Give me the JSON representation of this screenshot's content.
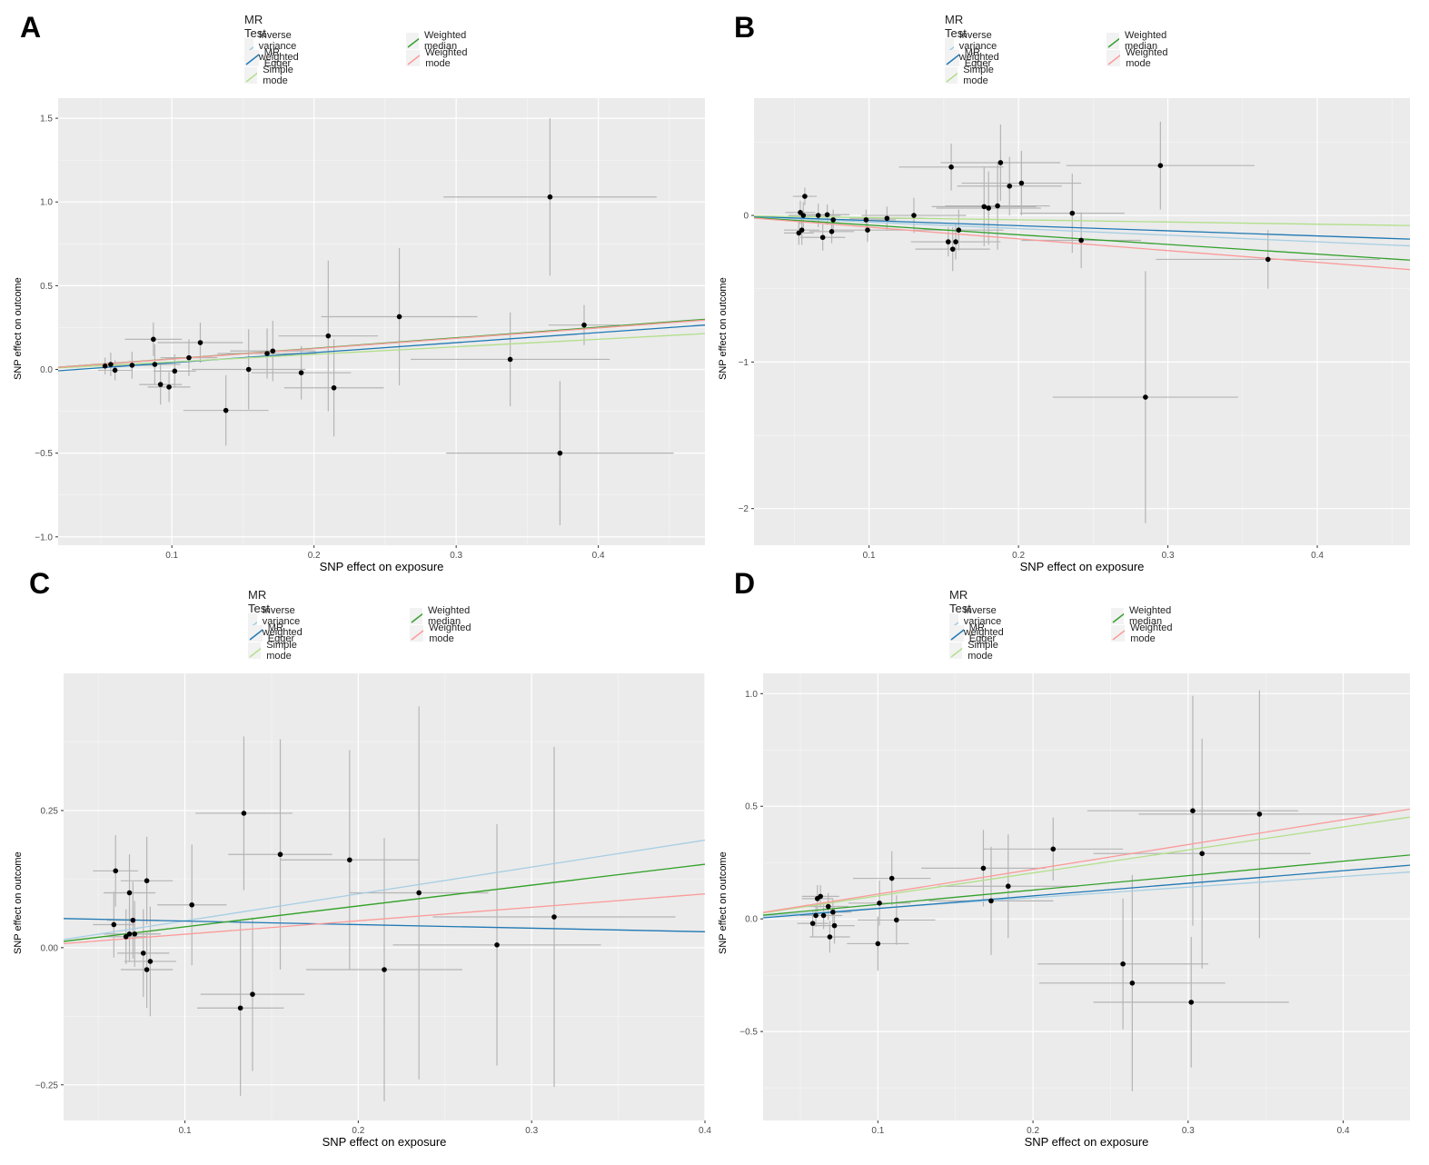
{
  "legend": {
    "title": "MR Test",
    "items": [
      {
        "label": "Inverse variance weighted",
        "color": "#a6cee3"
      },
      {
        "label": "MR Egger",
        "color": "#1f78b4"
      },
      {
        "label": "Simple mode",
        "color": "#b2df8a"
      },
      {
        "label": "Weighted median",
        "color": "#33a02c"
      },
      {
        "label": "Weighted mode",
        "color": "#fb9a99"
      }
    ]
  },
  "chart_data": [
    {
      "panel": "A",
      "type": "scatter",
      "xlabel": "SNP effect on exposure",
      "ylabel": "SNP effect on outcome",
      "xlim": [
        0.02,
        0.475
      ],
      "ylim": [
        -1.05,
        1.62
      ],
      "xticks": [
        0.1,
        0.2,
        0.3,
        0.4
      ],
      "xtick_labels": [
        "0.1",
        "0.2",
        "0.3",
        "0.4"
      ],
      "yticks": [
        -1.0,
        -0.5,
        0.0,
        0.5,
        1.0,
        1.5
      ],
      "ytick_labels": [
        "−1.0",
        "−0.5",
        "0.0",
        "0.5",
        "1.0",
        "1.5"
      ],
      "points": [
        {
          "x": 0.053,
          "y": 0.02,
          "xerr": 0.01,
          "yerr": 0.05
        },
        {
          "x": 0.057,
          "y": 0.03,
          "xerr": 0.012,
          "yerr": 0.07
        },
        {
          "x": 0.06,
          "y": -0.005,
          "xerr": 0.012,
          "yerr": 0.06
        },
        {
          "x": 0.072,
          "y": 0.025,
          "xerr": 0.015,
          "yerr": 0.08
        },
        {
          "x": 0.087,
          "y": 0.18,
          "xerr": 0.02,
          "yerr": 0.1
        },
        {
          "x": 0.088,
          "y": 0.03,
          "xerr": 0.018,
          "yerr": 0.12
        },
        {
          "x": 0.092,
          "y": -0.09,
          "xerr": 0.015,
          "yerr": 0.12
        },
        {
          "x": 0.098,
          "y": -0.105,
          "xerr": 0.015,
          "yerr": 0.09
        },
        {
          "x": 0.102,
          "y": -0.01,
          "xerr": 0.015,
          "yerr": 0.1
        },
        {
          "x": 0.112,
          "y": 0.07,
          "xerr": 0.02,
          "yerr": 0.11
        },
        {
          "x": 0.12,
          "y": 0.16,
          "xerr": 0.03,
          "yerr": 0.12
        },
        {
          "x": 0.138,
          "y": -0.245,
          "xerr": 0.03,
          "yerr": 0.21
        },
        {
          "x": 0.154,
          "y": 0.0,
          "xerr": 0.04,
          "yerr": 0.24
        },
        {
          "x": 0.167,
          "y": 0.095,
          "xerr": 0.035,
          "yerr": 0.15
        },
        {
          "x": 0.171,
          "y": 0.11,
          "xerr": 0.03,
          "yerr": 0.18
        },
        {
          "x": 0.191,
          "y": -0.02,
          "xerr": 0.035,
          "yerr": 0.16
        },
        {
          "x": 0.21,
          "y": 0.2,
          "xerr": 0.035,
          "yerr": 0.45
        },
        {
          "x": 0.214,
          "y": -0.11,
          "xerr": 0.035,
          "yerr": 0.29
        },
        {
          "x": 0.26,
          "y": 0.315,
          "xerr": 0.055,
          "yerr": 0.41
        },
        {
          "x": 0.338,
          "y": 0.06,
          "xerr": 0.07,
          "yerr": 0.28
        },
        {
          "x": 0.366,
          "y": 1.03,
          "xerr": 0.075,
          "yerr": 0.47
        },
        {
          "x": 0.373,
          "y": -0.5,
          "xerr": 0.08,
          "yerr": 0.43
        },
        {
          "x": 0.39,
          "y": 0.265,
          "xerr": 0.025,
          "yerr": 0.12
        }
      ],
      "lines": [
        {
          "method": "Inverse variance weighted",
          "intercept": 0.0,
          "slope": 0.62
        },
        {
          "method": "MR Egger",
          "intercept": -0.02,
          "slope": 0.6
        },
        {
          "method": "Simple mode",
          "intercept": 0.0,
          "slope": 0.45
        },
        {
          "method": "Weighted median",
          "intercept": 0.0,
          "slope": 0.63
        },
        {
          "method": "Weighted mode",
          "intercept": 0.0,
          "slope": 0.62
        }
      ]
    },
    {
      "panel": "B",
      "type": "scatter",
      "xlabel": "SNP effect on exposure",
      "ylabel": "SNP effect on outcome",
      "xlim": [
        0.023,
        0.462
      ],
      "ylim": [
        -2.25,
        0.8
      ],
      "xticks": [
        0.1,
        0.2,
        0.3,
        0.4
      ],
      "xtick_labels": [
        "0.1",
        "0.2",
        "0.3",
        "0.4"
      ],
      "yticks": [
        -2,
        -1,
        0
      ],
      "ytick_labels": [
        "−2",
        "−1",
        "0"
      ],
      "points": [
        {
          "x": 0.053,
          "y": -0.12,
          "xerr": 0.01,
          "yerr": 0.08
        },
        {
          "x": 0.054,
          "y": 0.02,
          "xerr": 0.01,
          "yerr": 0.08
        },
        {
          "x": 0.055,
          "y": -0.1,
          "xerr": 0.012,
          "yerr": 0.1
        },
        {
          "x": 0.056,
          "y": 0.0,
          "xerr": 0.01,
          "yerr": 0.09
        },
        {
          "x": 0.057,
          "y": 0.13,
          "xerr": 0.008,
          "yerr": 0.06
        },
        {
          "x": 0.066,
          "y": 0.0,
          "xerr": 0.015,
          "yerr": 0.08
        },
        {
          "x": 0.069,
          "y": -0.15,
          "xerr": 0.015,
          "yerr": 0.09
        },
        {
          "x": 0.072,
          "y": 0.005,
          "xerr": 0.015,
          "yerr": 0.07
        },
        {
          "x": 0.075,
          "y": -0.11,
          "xerr": 0.015,
          "yerr": 0.08
        },
        {
          "x": 0.076,
          "y": -0.03,
          "xerr": 0.015,
          "yerr": 0.07
        },
        {
          "x": 0.099,
          "y": -0.1,
          "xerr": 0.025,
          "yerr": 0.08
        },
        {
          "x": 0.098,
          "y": -0.03,
          "xerr": 0.02,
          "yerr": 0.07
        },
        {
          "x": 0.112,
          "y": -0.02,
          "xerr": 0.025,
          "yerr": 0.08
        },
        {
          "x": 0.13,
          "y": 0.0,
          "xerr": 0.035,
          "yerr": 0.12
        },
        {
          "x": 0.153,
          "y": -0.18,
          "xerr": 0.02,
          "yerr": 0.1
        },
        {
          "x": 0.155,
          "y": 0.33,
          "xerr": 0.035,
          "yerr": 0.16
        },
        {
          "x": 0.156,
          "y": -0.23,
          "xerr": 0.025,
          "yerr": 0.15
        },
        {
          "x": 0.158,
          "y": -0.18,
          "xerr": 0.03,
          "yerr": 0.12
        },
        {
          "x": 0.16,
          "y": -0.1,
          "xerr": 0.03,
          "yerr": 0.14
        },
        {
          "x": 0.177,
          "y": 0.06,
          "xerr": 0.035,
          "yerr": 0.27
        },
        {
          "x": 0.18,
          "y": 0.05,
          "xerr": 0.035,
          "yerr": 0.25
        },
        {
          "x": 0.186,
          "y": 0.065,
          "xerr": 0.035,
          "yerr": 0.3
        },
        {
          "x": 0.188,
          "y": 0.36,
          "xerr": 0.04,
          "yerr": 0.26
        },
        {
          "x": 0.194,
          "y": 0.2,
          "xerr": 0.035,
          "yerr": 0.2
        },
        {
          "x": 0.202,
          "y": 0.22,
          "xerr": 0.04,
          "yerr": 0.22
        },
        {
          "x": 0.236,
          "y": 0.015,
          "xerr": 0.035,
          "yerr": 0.27
        },
        {
          "x": 0.242,
          "y": -0.17,
          "xerr": 0.04,
          "yerr": 0.19
        },
        {
          "x": 0.285,
          "y": -1.24,
          "xerr": 0.062,
          "yerr": 0.86
        },
        {
          "x": 0.295,
          "y": 0.34,
          "xerr": 0.063,
          "yerr": 0.3
        },
        {
          "x": 0.367,
          "y": -0.3,
          "xerr": 0.075,
          "yerr": 0.2
        }
      ],
      "lines": [
        {
          "method": "Inverse variance weighted",
          "intercept": 0.0,
          "slope": -0.45
        },
        {
          "method": "MR Egger",
          "intercept": 0.0,
          "slope": -0.35
        },
        {
          "method": "Simple mode",
          "intercept": 0.0,
          "slope": -0.15
        },
        {
          "method": "Weighted median",
          "intercept": 0.0,
          "slope": -0.66
        },
        {
          "method": "Weighted mode",
          "intercept": 0.0,
          "slope": -0.8
        }
      ]
    },
    {
      "panel": "C",
      "type": "scatter",
      "xlabel": "SNP effect on exposure",
      "ylabel": "SNP effect on outcome",
      "xlim": [
        0.03,
        0.4
      ],
      "ylim": [
        -0.315,
        0.5
      ],
      "xticks": [
        0.1,
        0.2,
        0.3,
        0.4
      ],
      "xtick_labels": [
        "0.1",
        "0.2",
        "0.3",
        "0.4"
      ],
      "yticks": [
        -0.25,
        0.0,
        0.25
      ],
      "ytick_labels": [
        "−0.25",
        "0.00",
        "0.25"
      ],
      "points": [
        {
          "x": 0.059,
          "y": 0.042,
          "xerr": 0.012,
          "yerr": 0.06
        },
        {
          "x": 0.06,
          "y": 0.14,
          "xerr": 0.013,
          "yerr": 0.065
        },
        {
          "x": 0.066,
          "y": 0.02,
          "xerr": 0.012,
          "yerr": 0.05
        },
        {
          "x": 0.068,
          "y": 0.1,
          "xerr": 0.015,
          "yerr": 0.07
        },
        {
          "x": 0.068,
          "y": 0.025,
          "xerr": 0.015,
          "yerr": 0.05
        },
        {
          "x": 0.07,
          "y": 0.05,
          "xerr": 0.015,
          "yerr": 0.07
        },
        {
          "x": 0.071,
          "y": 0.025,
          "xerr": 0.015,
          "yerr": 0.06
        },
        {
          "x": 0.076,
          "y": -0.01,
          "xerr": 0.015,
          "yerr": 0.08
        },
        {
          "x": 0.078,
          "y": 0.122,
          "xerr": 0.015,
          "yerr": 0.08
        },
        {
          "x": 0.078,
          "y": -0.04,
          "xerr": 0.015,
          "yerr": 0.07
        },
        {
          "x": 0.08,
          "y": -0.025,
          "xerr": 0.015,
          "yerr": 0.1
        },
        {
          "x": 0.104,
          "y": 0.078,
          "xerr": 0.02,
          "yerr": 0.11
        },
        {
          "x": 0.132,
          "y": -0.11,
          "xerr": 0.025,
          "yerr": 0.16
        },
        {
          "x": 0.134,
          "y": 0.245,
          "xerr": 0.028,
          "yerr": 0.14
        },
        {
          "x": 0.139,
          "y": -0.085,
          "xerr": 0.03,
          "yerr": 0.14
        },
        {
          "x": 0.155,
          "y": 0.17,
          "xerr": 0.03,
          "yerr": 0.21
        },
        {
          "x": 0.195,
          "y": 0.16,
          "xerr": 0.04,
          "yerr": 0.2
        },
        {
          "x": 0.215,
          "y": -0.04,
          "xerr": 0.045,
          "yerr": 0.24
        },
        {
          "x": 0.235,
          "y": 0.1,
          "xerr": 0.04,
          "yerr": 0.34
        },
        {
          "x": 0.28,
          "y": 0.005,
          "xerr": 0.06,
          "yerr": 0.22
        },
        {
          "x": 0.313,
          "y": 0.056,
          "xerr": 0.07,
          "yerr": 0.31
        }
      ],
      "lines": [
        {
          "method": "Inverse variance weighted",
          "intercept": 0.0,
          "slope": 0.49
        },
        {
          "method": "MR Egger",
          "intercept": 0.055,
          "slope": -0.065
        },
        {
          "method": "Simple mode",
          "intercept": 0.0,
          "slope": 0.38
        },
        {
          "method": "Weighted median",
          "intercept": 0.0,
          "slope": 0.38
        },
        {
          "method": "Weighted mode",
          "intercept": 0.0,
          "slope": 0.245
        }
      ]
    },
    {
      "panel": "D",
      "type": "scatter",
      "xlabel": "SNP effect on exposure",
      "ylabel": "SNP effect on outcome",
      "xlim": [
        0.026,
        0.443
      ],
      "ylim": [
        -0.895,
        1.09
      ],
      "xticks": [
        0.1,
        0.2,
        0.3,
        0.4
      ],
      "xtick_labels": [
        "0.1",
        "0.2",
        "0.3",
        "0.4"
      ],
      "yticks": [
        -0.5,
        0.0,
        0.5,
        1.0
      ],
      "ytick_labels": [
        "−0.5",
        "0.0",
        "0.5",
        "1.0"
      ],
      "points": [
        {
          "x": 0.058,
          "y": -0.02,
          "xerr": 0.01,
          "yerr": 0.06
        },
        {
          "x": 0.06,
          "y": 0.015,
          "xerr": 0.01,
          "yerr": 0.05
        },
        {
          "x": 0.061,
          "y": 0.09,
          "xerr": 0.01,
          "yerr": 0.06
        },
        {
          "x": 0.063,
          "y": 0.1,
          "xerr": 0.012,
          "yerr": 0.05
        },
        {
          "x": 0.065,
          "y": 0.015,
          "xerr": 0.012,
          "yerr": 0.06
        },
        {
          "x": 0.068,
          "y": 0.055,
          "xerr": 0.013,
          "yerr": 0.06
        },
        {
          "x": 0.069,
          "y": -0.08,
          "xerr": 0.013,
          "yerr": 0.07
        },
        {
          "x": 0.071,
          "y": 0.03,
          "xerr": 0.012,
          "yerr": 0.06
        },
        {
          "x": 0.072,
          "y": -0.03,
          "xerr": 0.013,
          "yerr": 0.08
        },
        {
          "x": 0.1,
          "y": -0.11,
          "xerr": 0.02,
          "yerr": 0.12
        },
        {
          "x": 0.101,
          "y": 0.07,
          "xerr": 0.02,
          "yerr": 0.1
        },
        {
          "x": 0.109,
          "y": 0.18,
          "xerr": 0.025,
          "yerr": 0.12
        },
        {
          "x": 0.112,
          "y": -0.005,
          "xerr": 0.025,
          "yerr": 0.11
        },
        {
          "x": 0.168,
          "y": 0.225,
          "xerr": 0.04,
          "yerr": 0.17
        },
        {
          "x": 0.173,
          "y": 0.08,
          "xerr": 0.04,
          "yerr": 0.24
        },
        {
          "x": 0.184,
          "y": 0.145,
          "xerr": 0.045,
          "yerr": 0.23
        },
        {
          "x": 0.213,
          "y": 0.31,
          "xerr": 0.045,
          "yerr": 0.14
        },
        {
          "x": 0.258,
          "y": -0.2,
          "xerr": 0.055,
          "yerr": 0.29
        },
        {
          "x": 0.264,
          "y": -0.285,
          "xerr": 0.06,
          "yerr": 0.48
        },
        {
          "x": 0.302,
          "y": -0.37,
          "xerr": 0.063,
          "yerr": 0.29
        },
        {
          "x": 0.303,
          "y": 0.48,
          "xerr": 0.068,
          "yerr": 0.51
        },
        {
          "x": 0.309,
          "y": 0.29,
          "xerr": 0.07,
          "yerr": 0.51
        },
        {
          "x": 0.346,
          "y": 0.465,
          "xerr": 0.078,
          "yerr": 0.55
        }
      ],
      "lines": [
        {
          "method": "Inverse variance weighted",
          "intercept": 0.0,
          "slope": 0.47
        },
        {
          "method": "MR Egger",
          "intercept": -0.01,
          "slope": 0.56
        },
        {
          "method": "Simple mode",
          "intercept": 0.0,
          "slope": 1.02
        },
        {
          "method": "Weighted median",
          "intercept": 0.0,
          "slope": 0.64
        },
        {
          "method": "Weighted mode",
          "intercept": 0.0,
          "slope": 1.1
        }
      ]
    }
  ]
}
